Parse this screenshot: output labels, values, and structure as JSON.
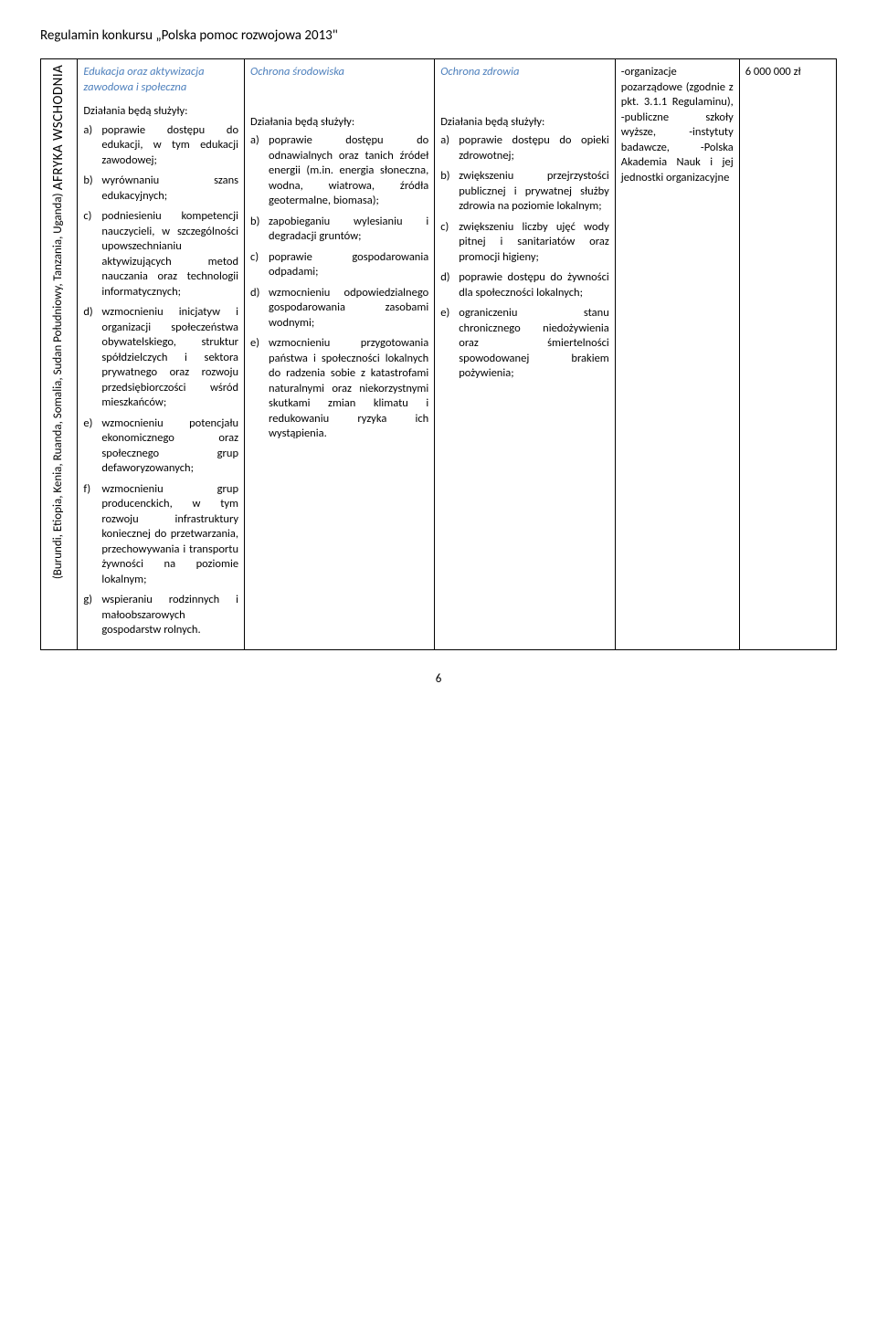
{
  "doc_title": "Regulamin konkursu „Polska pomoc rozwojowa 2013\"",
  "region": {
    "main": "AFRYKA WSCHODNIA",
    "sub": "(Burundi, Etiopia, Kenia, Ruanda, Somalia, Sudan Południowy, Tanzania, Uganda)"
  },
  "col1": {
    "title": "Edukacja oraz aktywizacja zawodowa i społeczna",
    "lead": "Działania będą służyły:",
    "items": [
      {
        "m": "a)",
        "t": "poprawie dostępu do edukacji, w tym edukacji zawodowej;"
      },
      {
        "m": "b)",
        "t": "wyrównaniu szans edukacyjnych;"
      },
      {
        "m": "c)",
        "t": "podniesieniu kompetencji nauczycieli, w szczególności upowszechnianiu aktywizujących metod nauczania oraz technologii informatycznych;"
      },
      {
        "m": "d)",
        "t": "wzmocnieniu inicjatyw i organizacji społeczeństwa obywatelskiego, struktur spółdzielczych i sektora prywatnego oraz rozwoju przedsiębiorczości wśród mieszkańców;"
      },
      {
        "m": "e)",
        "t": "wzmocnieniu potencjału ekonomicznego oraz społecznego grup defaworyzowanych;"
      },
      {
        "m": "f)",
        "t": "wzmocnieniu grup producenckich, w tym rozwoju infrastruktury koniecznej do przetwarzania, przechowywania i transportu żywności na poziomie lokalnym;"
      },
      {
        "m": "g)",
        "t": "wspieraniu rodzinnych i małoobszarowych gospodarstw rolnych."
      }
    ]
  },
  "col2": {
    "title": "Ochrona środowiska",
    "lead": "Działania będą służyły:",
    "items": [
      {
        "m": "a)",
        "t": "poprawie dostępu do odnawialnych oraz tanich źródeł energii (m.in. energia słoneczna, wodna, wiatrowa, źródła geotermalne, biomasa);"
      },
      {
        "m": "b)",
        "t": "zapobieganiu wylesianiu i degradacji gruntów;"
      },
      {
        "m": "c)",
        "t": "poprawie gospodarowania odpadami;"
      },
      {
        "m": "d)",
        "t": "wzmocnieniu odpowiedzialnego gospodarowania zasobami wodnymi;"
      },
      {
        "m": "e)",
        "t": "wzmocnieniu przygotowania państwa i społeczności lokalnych do radzenia sobie z katastrofami naturalnymi oraz niekorzystnymi skutkami zmian klimatu i redukowaniu ryzyka ich wystąpienia."
      }
    ]
  },
  "col3": {
    "title": "Ochrona zdrowia",
    "lead": "Działania będą służyły:",
    "items": [
      {
        "m": "a)",
        "t": "poprawie dostępu do opieki zdrowotnej;"
      },
      {
        "m": "b)",
        "t": "zwiększeniu przejrzystości publicznej i prywatnej służby zdrowia na poziomie lokalnym;"
      },
      {
        "m": "c)",
        "t": "zwiększeniu liczby ujęć wody pitnej i sanitariatów oraz promocji higieny;"
      },
      {
        "m": "d)",
        "t": "poprawie dostępu do żywności dla społeczności lokalnych;"
      },
      {
        "m": "e)",
        "t": "ograniczeniu stanu chronicznego niedożywienia oraz śmiertelności spowodowanej brakiem pożywienia;"
      }
    ]
  },
  "col4": {
    "text": "-organizacje pozarządowe (zgodnie z pkt. 3.1.1 Regulaminu), -publiczne szkoły wyższe, -instytuty badawcze, -Polska Akademia Nauk i jej jednostki organizacyjne"
  },
  "col5": {
    "text": "6 000 000 zł"
  },
  "page_number": "6"
}
